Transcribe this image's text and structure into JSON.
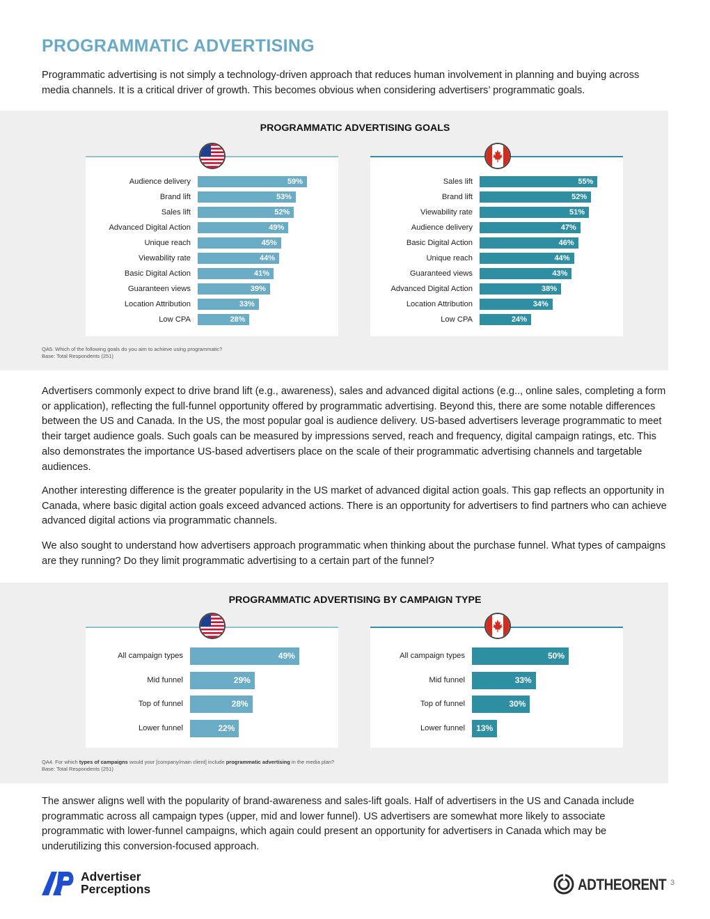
{
  "page": {
    "title": "PROGRAMMATIC ADVERTISING",
    "intro": "Programmatic advertising is not simply a technology-driven approach that reduces human involvement in planning and buying across media channels. It is a critical driver of growth. This becomes obvious when considering advertisers’ programmatic goals.",
    "paragraph_2": "Advertisers commonly expect to drive brand lift (e.g., awareness), sales and advanced digital actions (e.g.., online sales, completing a form or application), reflecting the full-funnel opportunity offered by programmatic advertising. Beyond this, there are some notable differences between the US and Canada. In the US, the most popular goal is audience delivery. US-based advertisers leverage programmatic to meet their target audience goals. Such goals can be measured by impressions served, reach and frequency, digital campaign ratings, etc. This also demonstrates the importance US-based advertisers place on the scale of their programmatic advertising channels and targetable audiences.",
    "paragraph_3": "Another interesting difference is the greater popularity in the US market of advanced digital action goals. This gap reflects an opportunity in Canada, where basic digital action goals exceed advanced actions. There is an opportunity for advertisers to find partners who can achieve advanced digital actions via programmatic channels.",
    "paragraph_4": "We also sought to understand how advertisers approach programmatic when thinking about the purchase funnel. What types of campaigns are they running? Do they limit programmatic advertising to a certain part of the funnel?",
    "paragraph_5": "The answer aligns well with the popularity of brand-awareness and sales-lift goals. Half of advertisers in the US and Canada include programmatic across all campaign types (upper, mid and lower funnel). US advertisers are somewhat more likely to associate programmatic with lower-funnel campaigns, which again could present an opportunity for advertisers in Canada which may be underutilizing this conversion-focused approach.",
    "page_number": "3"
  },
  "goals_panel": {
    "title": "PROGRAMMATIC ADVERTISING GOALS",
    "note_line1": "QA5. Which of the following goals do you aim to achieve using programmatic?",
    "note_line2": "Base: Total Respondents (251)"
  },
  "campaign_panel": {
    "title": "PROGRAMMATIC ADVERTISING BY CAMPAIGN TYPE",
    "note_pre": "QA4. For which ",
    "note_bold1": "types of campaigns",
    "note_mid": " would your [company/main client] include ",
    "note_bold2": "programmatic advertising",
    "note_post": " in the media plan?",
    "note_line2": "Base: Total Respondents (251)"
  },
  "logos": {
    "left_line1": "Advertiser",
    "left_line2": "Perceptions",
    "right": "ADTHEORENT"
  },
  "colors": {
    "title": "#69a9c8",
    "us_bar": "#6aabc6",
    "ca_bar": "#2e8fa3",
    "panel_bg": "#efefef",
    "logo_blue": "#1f4fd1"
  },
  "chart_data": [
    {
      "type": "bar",
      "orientation": "horizontal",
      "market": "US",
      "categories": [
        "Audience delivery",
        "Brand lift",
        "Sales lift",
        "Advanced Digital Action",
        "Unique reach",
        "Viewability rate",
        "Basic Digital Action",
        "Guaranteen views",
        "Location Attribution",
        "Low CPA"
      ],
      "values": [
        59,
        53,
        52,
        49,
        45,
        44,
        41,
        39,
        33,
        28
      ],
      "value_labels": [
        "59%",
        "53%",
        "52%",
        "49%",
        "45%",
        "44%",
        "41%",
        "39%",
        "33%",
        "28%"
      ],
      "xlim": [
        0,
        100
      ]
    },
    {
      "type": "bar",
      "orientation": "horizontal",
      "market": "Canada",
      "categories": [
        "Sales lift",
        "Brand lift",
        "Viewability rate",
        "Audience delivery",
        "Basic Digital Action",
        "Unique reach",
        "Guaranteed views",
        "Advanced Digital Action",
        "Location Attribution",
        "Low CPA"
      ],
      "values": [
        55,
        52,
        51,
        47,
        46,
        44,
        43,
        38,
        34,
        24
      ],
      "value_labels": [
        "55%",
        "52%",
        "51%",
        "47%",
        "46%",
        "44%",
        "43%",
        "38%",
        "34%",
        "24%"
      ],
      "xlim": [
        0,
        100
      ]
    },
    {
      "type": "bar",
      "orientation": "horizontal",
      "market": "US",
      "categories": [
        "All campaign types",
        "Mid funnel",
        "Top of funnel",
        "Lower funnel"
      ],
      "values": [
        49,
        29,
        28,
        22
      ],
      "value_labels": [
        "49%",
        "29%",
        "28%",
        "22%"
      ],
      "xlim": [
        0,
        100
      ]
    },
    {
      "type": "bar",
      "orientation": "horizontal",
      "market": "Canada",
      "categories": [
        "All campaign types",
        "Mid funnel",
        "Top of funnel",
        "Lower funnel"
      ],
      "values": [
        50,
        33,
        30,
        13
      ],
      "value_labels": [
        "50%",
        "33%",
        "30%",
        "13%"
      ],
      "xlim": [
        0,
        100
      ]
    }
  ]
}
